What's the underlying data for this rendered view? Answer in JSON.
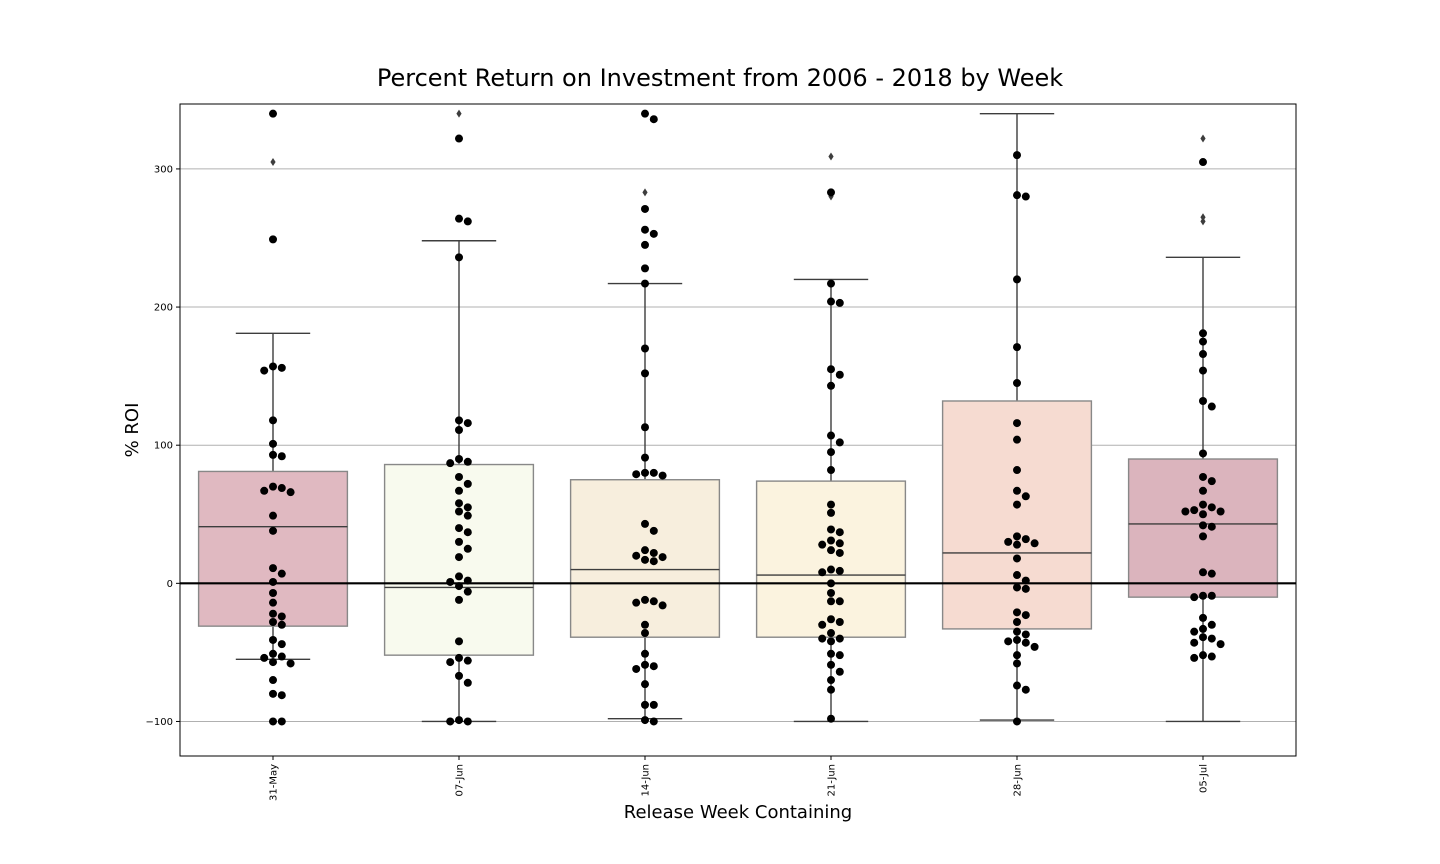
{
  "chart_data": {
    "type": "box",
    "title": "Percent Return on Investment from 2006 - 2018 by Week",
    "xlabel": "Release Week Containing",
    "ylabel": "% ROI",
    "ylim": [
      -125,
      347
    ],
    "yticks": [
      -100,
      0,
      100,
      200,
      300
    ],
    "ytick_labels": [
      "−100",
      "0",
      "100",
      "200",
      "300"
    ],
    "grid": "horizontal",
    "reference_line": 0,
    "categories": [
      "31-May",
      "07-Jun",
      "14-Jun",
      "21-Jun",
      "28-Jun",
      "05-Jul"
    ],
    "boxes": [
      {
        "category": "31-May",
        "color": "#e0b9c1",
        "q1": -31,
        "median": 41,
        "q3": 81,
        "whisker_low": -55,
        "whisker_high": 181,
        "outliers": [
          305,
          340
        ]
      },
      {
        "category": "07-Jun",
        "color": "#f8faee",
        "q1": -52,
        "median": -3,
        "q3": 86,
        "whisker_low": -100,
        "whisker_high": 248,
        "outliers": [
          340
        ]
      },
      {
        "category": "14-Jun",
        "color": "#f7eedd",
        "q1": -39,
        "median": 10,
        "q3": 75,
        "whisker_low": -98,
        "whisker_high": 217,
        "outliers": [
          283
        ]
      },
      {
        "category": "21-Jun",
        "color": "#fbf3df",
        "q1": -39,
        "median": 6,
        "q3": 74,
        "whisker_low": -100,
        "whisker_high": 220,
        "outliers": [
          280,
          309
        ]
      },
      {
        "category": "28-Jun",
        "color": "#f6dbd1",
        "q1": -33,
        "median": 22,
        "q3": 132,
        "whisker_low": -99,
        "whisker_high": 340,
        "outliers": []
      },
      {
        "category": "05-Jul",
        "color": "#dbb4bd",
        "q1": -10,
        "median": 43,
        "q3": 90,
        "whisker_low": -100,
        "whisker_high": 236,
        "outliers": [
          262,
          265,
          322
        ]
      }
    ],
    "swarm": [
      [
        340,
        249,
        157,
        156,
        154,
        118,
        101,
        93,
        92,
        70,
        69,
        67,
        66,
        49,
        38,
        11,
        7,
        1,
        -7,
        -14,
        -22,
        -24,
        -28,
        -30,
        -41,
        -44,
        -51,
        -53,
        -54,
        -57,
        -58,
        -70,
        -80,
        -81,
        -100,
        -100
      ],
      [
        322,
        264,
        262,
        236,
        118,
        116,
        111,
        90,
        88,
        87,
        77,
        72,
        67,
        58,
        55,
        52,
        49,
        40,
        37,
        30,
        25,
        19,
        5,
        2,
        1,
        -2,
        -6,
        -12,
        -42,
        -54,
        -56,
        -57,
        -67,
        -72,
        -99,
        -100,
        -100
      ],
      [
        340,
        336,
        271,
        256,
        253,
        245,
        228,
        217,
        170,
        152,
        113,
        91,
        80,
        80,
        79,
        78,
        43,
        38,
        24,
        22,
        20,
        19,
        17,
        16,
        -12,
        -13,
        -14,
        -16,
        -30,
        -36,
        -51,
        -59,
        -60,
        -62,
        -73,
        -88,
        -88,
        -99,
        -100
      ],
      [
        283,
        217,
        204,
        203,
        155,
        151,
        143,
        107,
        102,
        95,
        82,
        57,
        51,
        39,
        37,
        31,
        29,
        28,
        24,
        22,
        10,
        9,
        8,
        0,
        -7,
        -13,
        -13,
        -26,
        -28,
        -30,
        -36,
        -40,
        -40,
        -42,
        -51,
        -52,
        -59,
        -64,
        -70,
        -77,
        -98
      ],
      [
        310,
        281,
        280,
        220,
        171,
        145,
        116,
        104,
        82,
        67,
        63,
        57,
        34,
        32,
        30,
        29,
        28,
        18,
        6,
        2,
        -3,
        -4,
        -21,
        -23,
        -28,
        -35,
        -37,
        -41,
        -42,
        -43,
        -46,
        -52,
        -58,
        -74,
        -77,
        -100
      ],
      [
        305,
        181,
        175,
        166,
        154,
        132,
        128,
        94,
        77,
        74,
        67,
        57,
        55,
        53,
        52,
        52,
        50,
        42,
        41,
        34,
        8,
        7,
        -9,
        -9,
        -10,
        -25,
        -30,
        -33,
        -35,
        -39,
        -40,
        -43,
        -44,
        -52,
        -53,
        -54
      ]
    ]
  }
}
